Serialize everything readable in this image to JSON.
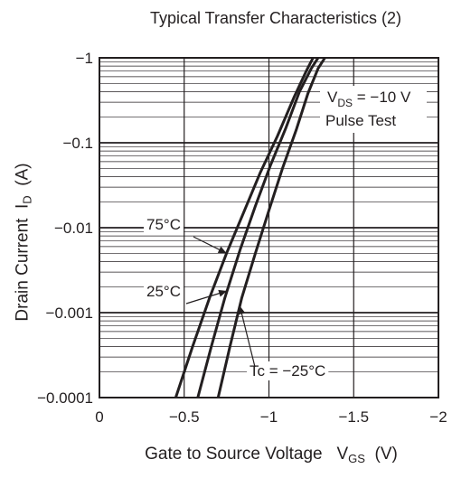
{
  "chart_data": {
    "type": "line",
    "title": "Typical Transfer Characteristics (2)",
    "xlabel": {
      "main": "Gate to Source Voltage",
      "symbol": "V",
      "sub": "GS",
      "unit": "(V)"
    },
    "ylabel": {
      "main": "Drain Current",
      "symbol": "I",
      "sub": "D",
      "unit": "(A)"
    },
    "xlim": [
      0,
      -2
    ],
    "ylim": [
      -0.0001,
      -1
    ],
    "yscale": "log",
    "grid": true,
    "x_ticks": [
      "0",
      "−0.5",
      "−1",
      "−1.5",
      "−2"
    ],
    "y_ticks": [
      "−0.0001",
      "−0.001",
      "−0.01",
      "−0.1",
      "−1"
    ],
    "conditions": {
      "vds_symbol": "V",
      "vds_sub": "DS",
      "vds_value": " = −10 V",
      "pulse": "Pulse Test"
    },
    "series": [
      {
        "name": "75°C",
        "x": [
          -0.45,
          -0.55,
          -0.65,
          -0.75,
          -0.85,
          -0.95,
          -1.05,
          -1.15,
          -1.22,
          -1.26
        ],
        "y": [
          -0.0001,
          -0.0004,
          -0.0015,
          -0.005,
          -0.015,
          -0.045,
          -0.12,
          -0.35,
          -0.7,
          -1
        ]
      },
      {
        "name": "25°C",
        "x": [
          -0.58,
          -0.66,
          -0.74,
          -0.83,
          -0.92,
          -1.01,
          -1.1,
          -1.18,
          -1.25,
          -1.29
        ],
        "y": [
          -0.0001,
          -0.0004,
          -0.0015,
          -0.0055,
          -0.018,
          -0.055,
          -0.15,
          -0.4,
          -0.75,
          -1
        ]
      },
      {
        "name": "Tc = −25°C",
        "x": [
          -0.7,
          -0.77,
          -0.84,
          -0.92,
          -1.0,
          -1.08,
          -1.16,
          -1.23,
          -1.29,
          -1.33
        ],
        "y": [
          -0.0001,
          -0.0004,
          -0.0015,
          -0.005,
          -0.016,
          -0.05,
          -0.14,
          -0.38,
          -0.75,
          -1
        ]
      }
    ],
    "labels": [
      {
        "text": "75°C",
        "series": 0
      },
      {
        "text": "25°C",
        "series": 1
      },
      {
        "text": "Tc = −25°C",
        "series": 2
      }
    ]
  }
}
